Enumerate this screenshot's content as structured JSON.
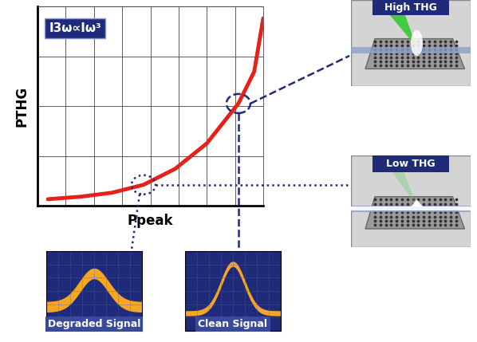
{
  "chart_data": {
    "type": "line",
    "annotations": [
      "I3ω∝Iω³"
    ],
    "xlabel": "Ppeak",
    "ylabel": "PTHG",
    "x": [
      0.37,
      1.52,
      2.64,
      3.76,
      4.88,
      6.0,
      7.12,
      7.68,
      8.0
    ],
    "values": [
      0.13,
      0.18,
      0.26,
      0.42,
      0.74,
      1.25,
      2.05,
      2.69,
      3.76
    ],
    "color": "#e8201a",
    "xlim": [
      0,
      8
    ],
    "ylim": [
      0,
      4
    ],
    "xticks": [
      0,
      1,
      2,
      3,
      4,
      5,
      6,
      7,
      8
    ],
    "yticks": [
      0,
      1,
      2,
      3,
      4
    ],
    "grid": true,
    "tick_labels": false
  },
  "insets": {
    "high": "High THG",
    "low": "Low THG",
    "degraded": "Degraded Signal",
    "clean": "Clean Signal"
  }
}
